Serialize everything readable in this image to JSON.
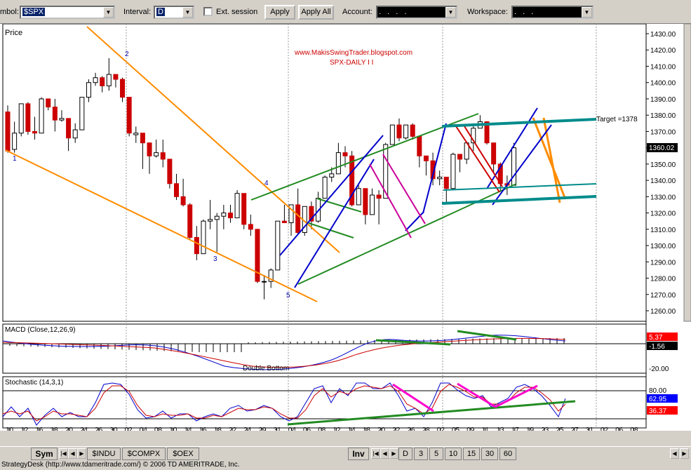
{
  "toolbar": {
    "symbol_label": "mbol:",
    "symbol_value": "$SPX",
    "interval_label": "Interval:",
    "interval_value": "D",
    "ext_session_label": "Ext. session",
    "apply_label": "Apply",
    "apply_all_label": "Apply All",
    "account_label": "Account:",
    "account_value": ". .  .  .",
    "workspace_label": "Workspace:",
    "workspace_value": ". . ."
  },
  "price_panel": {
    "label": "Price",
    "watermark_site": "www.MakisSwingTrader.blogspot.com",
    "watermark_title": "SPX-DAILY I I",
    "target_label": "Target =1378",
    "current_price": "1360.02",
    "y_ticks": [
      "1430.00",
      "1420.00",
      "1410.00",
      "1400.00",
      "1390.00",
      "1380.00",
      "1370.00",
      "1360.00",
      "1350.00",
      "1340.00",
      "1330.00",
      "1320.00",
      "1310.00",
      "1300.00",
      "1290.00",
      "1280.00",
      "1270.00",
      "1260.00"
    ],
    "wave_labels": [
      "1",
      "2",
      "3",
      "4",
      "5"
    ]
  },
  "macd_panel": {
    "label": "MACD (Close,12,26,9)",
    "value1": "5.37",
    "value2": "-1.56",
    "tick_low": "-20.00",
    "annotation": "Double Bottom",
    "colors": {
      "value1_bg": "#ff0000",
      "value2_bg": "#000000"
    }
  },
  "stoch_panel": {
    "label": "Stochastic (14,3,1)",
    "tick_high": "80.00",
    "value1": "62.95",
    "value2": "36.37",
    "colors": {
      "value1_bg": "#0000ff",
      "value2_bg": "#ff0000"
    }
  },
  "x_axis": {
    "days": [
      "10",
      "12",
      "16",
      "18",
      "20",
      "24",
      "26",
      "30",
      "02",
      "04",
      "08",
      "10",
      "14",
      "16",
      "18",
      "22",
      "24",
      "29",
      "31",
      "04",
      "06",
      "08",
      "12",
      "14",
      "18",
      "20",
      "22",
      "26",
      "28",
      "02",
      "05",
      "09",
      "11",
      "13",
      "17",
      "19",
      "23",
      "25",
      "27",
      "31",
      "02",
      "06",
      "08"
    ],
    "months": [
      "Apr 2012",
      "May 2012",
      "Jun 2012",
      "Jul 2012",
      "Aug 2012"
    ]
  },
  "tabs": {
    "sym": "Sym",
    "symbols": [
      "$INDU",
      "$COMPX",
      "$OEX"
    ],
    "inv": "Inv",
    "intervals": [
      "D",
      "3",
      "5",
      "10",
      "15",
      "30",
      "60"
    ]
  },
  "status": {
    "text": "StrategyDesk (http://www.tdameritrade.com/) © 2006 TD AMERITRADE, Inc."
  },
  "chart_data": {
    "type": "candlestick",
    "y_range": [
      1255,
      1435
    ],
    "candles": [
      {
        "x": "10",
        "open": 1382,
        "high": 1386,
        "low": 1357,
        "close": 1358
      },
      {
        "x": "11",
        "open": 1359,
        "high": 1376,
        "low": 1357,
        "close": 1369
      },
      {
        "x": "12",
        "open": 1369,
        "high": 1387,
        "low": 1367,
        "close": 1387
      },
      {
        "x": "13",
        "open": 1387,
        "high": 1388,
        "low": 1368,
        "close": 1370
      },
      {
        "x": "16",
        "open": 1370,
        "high": 1379,
        "low": 1365,
        "close": 1369
      },
      {
        "x": "17",
        "open": 1369,
        "high": 1391,
        "low": 1369,
        "close": 1390
      },
      {
        "x": "18",
        "open": 1390,
        "high": 1390,
        "low": 1383,
        "close": 1385
      },
      {
        "x": "19",
        "open": 1385,
        "high": 1390,
        "low": 1370,
        "close": 1377
      },
      {
        "x": "20",
        "open": 1377,
        "high": 1383,
        "low": 1376,
        "close": 1378
      },
      {
        "x": "23",
        "open": 1378,
        "high": 1378,
        "low": 1358,
        "close": 1366
      },
      {
        "x": "24",
        "open": 1366,
        "high": 1375,
        "low": 1363,
        "close": 1371
      },
      {
        "x": "25",
        "open": 1371,
        "high": 1391,
        "low": 1371,
        "close": 1391
      },
      {
        "x": "26",
        "open": 1391,
        "high": 1402,
        "low": 1388,
        "close": 1400
      },
      {
        "x": "27",
        "open": 1400,
        "high": 1406,
        "low": 1398,
        "close": 1403
      },
      {
        "x": "30",
        "open": 1403,
        "high": 1404,
        "low": 1394,
        "close": 1398
      },
      {
        "x": "01",
        "open": 1398,
        "high": 1415,
        "low": 1395,
        "close": 1405
      },
      {
        "x": "02",
        "open": 1405,
        "high": 1405,
        "low": 1397,
        "close": 1402
      },
      {
        "x": "03",
        "open": 1402,
        "high": 1403,
        "low": 1388,
        "close": 1391
      },
      {
        "x": "04",
        "open": 1391,
        "high": 1391,
        "low": 1367,
        "close": 1369
      },
      {
        "x": "07",
        "open": 1368,
        "high": 1373,
        "low": 1363,
        "close": 1369
      },
      {
        "x": "08",
        "open": 1369,
        "high": 1369,
        "low": 1347,
        "close": 1363
      },
      {
        "x": "09",
        "open": 1363,
        "high": 1363,
        "low": 1344,
        "close": 1355
      },
      {
        "x": "10",
        "open": 1355,
        "high": 1365,
        "low": 1354,
        "close": 1357
      },
      {
        "x": "11",
        "open": 1357,
        "high": 1365,
        "low": 1348,
        "close": 1353
      },
      {
        "x": "14",
        "open": 1353,
        "high": 1353,
        "low": 1335,
        "close": 1338
      },
      {
        "x": "15",
        "open": 1338,
        "high": 1344,
        "low": 1328,
        "close": 1330
      },
      {
        "x": "16",
        "open": 1330,
        "high": 1341,
        "low": 1324,
        "close": 1325
      },
      {
        "x": "17",
        "open": 1325,
        "high": 1326,
        "low": 1304,
        "close": 1305
      },
      {
        "x": "18",
        "open": 1305,
        "high": 1312,
        "low": 1291,
        "close": 1295
      },
      {
        "x": "21",
        "open": 1295,
        "high": 1316,
        "low": 1295,
        "close": 1315
      },
      {
        "x": "22",
        "open": 1315,
        "high": 1328,
        "low": 1310,
        "close": 1316
      },
      {
        "x": "23",
        "open": 1316,
        "high": 1320,
        "low": 1296,
        "close": 1318
      },
      {
        "x": "24",
        "open": 1318,
        "high": 1325,
        "low": 1310,
        "close": 1320
      },
      {
        "x": "25",
        "open": 1320,
        "high": 1325,
        "low": 1314,
        "close": 1317
      },
      {
        "x": "29",
        "open": 1317,
        "high": 1334,
        "low": 1317,
        "close": 1332
      },
      {
        "x": "30",
        "open": 1332,
        "high": 1332,
        "low": 1310,
        "close": 1313
      },
      {
        "x": "31",
        "open": 1313,
        "high": 1319,
        "low": 1306,
        "close": 1310
      },
      {
        "x": "01",
        "open": 1310,
        "high": 1310,
        "low": 1277,
        "close": 1278
      },
      {
        "x": "04",
        "open": 1278,
        "high": 1282,
        "low": 1267,
        "close": 1278
      },
      {
        "x": "05",
        "open": 1278,
        "high": 1286,
        "low": 1274,
        "close": 1285
      },
      {
        "x": "06",
        "open": 1285,
        "high": 1315,
        "low": 1285,
        "close": 1315
      },
      {
        "x": "07",
        "open": 1315,
        "high": 1325,
        "low": 1314,
        "close": 1314
      },
      {
        "x": "08",
        "open": 1314,
        "high": 1325,
        "low": 1306,
        "close": 1325
      },
      {
        "x": "11",
        "open": 1325,
        "high": 1335,
        "low": 1307,
        "close": 1308
      },
      {
        "x": "12",
        "open": 1308,
        "high": 1324,
        "low": 1306,
        "close": 1324
      },
      {
        "x": "13",
        "open": 1324,
        "high": 1327,
        "low": 1310,
        "close": 1315
      },
      {
        "x": "14",
        "open": 1315,
        "high": 1333,
        "low": 1314,
        "close": 1329
      },
      {
        "x": "15",
        "open": 1329,
        "high": 1343,
        "low": 1329,
        "close": 1342
      },
      {
        "x": "18",
        "open": 1342,
        "high": 1348,
        "low": 1339,
        "close": 1344
      },
      {
        "x": "19",
        "open": 1344,
        "high": 1363,
        "low": 1344,
        "close": 1357
      },
      {
        "x": "20",
        "open": 1357,
        "high": 1361,
        "low": 1348,
        "close": 1355
      },
      {
        "x": "21",
        "open": 1355,
        "high": 1358,
        "low": 1324,
        "close": 1325
      },
      {
        "x": "22",
        "open": 1325,
        "high": 1337,
        "low": 1325,
        "close": 1335
      },
      {
        "x": "25",
        "open": 1335,
        "high": 1335,
        "low": 1313,
        "close": 1319
      },
      {
        "x": "26",
        "open": 1319,
        "high": 1335,
        "low": 1319,
        "close": 1331
      },
      {
        "x": "27",
        "open": 1331,
        "high": 1334,
        "low": 1313,
        "close": 1329
      },
      {
        "x": "28",
        "open": 1329,
        "high": 1363,
        "low": 1329,
        "close": 1362
      },
      {
        "x": "29",
        "open": 1362,
        "high": 1374,
        "low": 1362,
        "close": 1374
      },
      {
        "x": "02",
        "open": 1374,
        "high": 1378,
        "low": 1364,
        "close": 1366
      },
      {
        "x": "03",
        "open": 1366,
        "high": 1374,
        "low": 1365,
        "close": 1374
      },
      {
        "x": "05",
        "open": 1374,
        "high": 1375,
        "low": 1365,
        "close": 1367
      },
      {
        "x": "06",
        "open": 1367,
        "high": 1367,
        "low": 1348,
        "close": 1355
      },
      {
        "x": "09",
        "open": 1355,
        "high": 1355,
        "low": 1343,
        "close": 1352
      },
      {
        "x": "10",
        "open": 1352,
        "high": 1357,
        "low": 1337,
        "close": 1341
      },
      {
        "x": "11",
        "open": 1341,
        "high": 1346,
        "low": 1337,
        "close": 1342
      },
      {
        "x": "12",
        "open": 1342,
        "high": 1342,
        "low": 1326,
        "close": 1335
      },
      {
        "x": "13",
        "open": 1335,
        "high": 1357,
        "low": 1334,
        "close": 1356
      },
      {
        "x": "16",
        "open": 1356,
        "high": 1356,
        "low": 1345,
        "close": 1353
      },
      {
        "x": "17",
        "open": 1353,
        "high": 1364,
        "low": 1350,
        "close": 1363
      },
      {
        "x": "18",
        "open": 1363,
        "high": 1375,
        "low": 1358,
        "close": 1372
      },
      {
        "x": "19",
        "open": 1372,
        "high": 1380,
        "low": 1372,
        "close": 1376
      },
      {
        "x": "20",
        "open": 1376,
        "high": 1376,
        "low": 1362,
        "close": 1363
      },
      {
        "x": "23",
        "open": 1363,
        "high": 1363,
        "low": 1345,
        "close": 1350
      },
      {
        "x": "24",
        "open": 1350,
        "high": 1351,
        "low": 1333,
        "close": 1338
      },
      {
        "x": "25",
        "open": 1338,
        "high": 1343,
        "low": 1331,
        "close": 1337
      },
      {
        "x": "26",
        "open": 1337,
        "high": 1363,
        "low": 1338,
        "close": 1360
      }
    ]
  }
}
